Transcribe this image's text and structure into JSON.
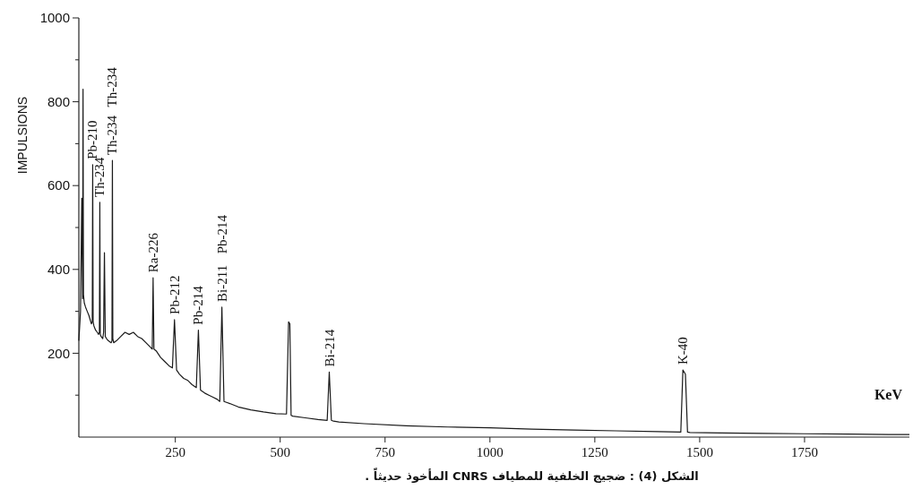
{
  "chart_data": {
    "type": "line",
    "xlabel": "KeV",
    "ylabel": "IMPULSIONS",
    "x": [
      20,
      24,
      27,
      29,
      30,
      31,
      33,
      36,
      40,
      44,
      47,
      50,
      52,
      53,
      54,
      56,
      60,
      64,
      67,
      69,
      70,
      71,
      73,
      77,
      79,
      81,
      83,
      86,
      90,
      97,
      99,
      100,
      101,
      103,
      110,
      120,
      130,
      140,
      150,
      160,
      170,
      180,
      190,
      195,
      197,
      199,
      205,
      215,
      225,
      235,
      243,
      248,
      253,
      260,
      270,
      280,
      290,
      300,
      305,
      310,
      320,
      330,
      340,
      350,
      356,
      361,
      366,
      380,
      400,
      430,
      460,
      490,
      515,
      520,
      523,
      526,
      530,
      560,
      590,
      612,
      617,
      622,
      627,
      640,
      700,
      800,
      900,
      1000,
      1100,
      1200,
      1300,
      1400,
      1455,
      1460,
      1466,
      1471,
      1477,
      1550,
      1650,
      1750,
      1850,
      1950,
      2000
    ],
    "series": [
      {
        "color": "#1a1a1a",
        "values": [
          230,
          300,
          570,
          330,
          830,
          340,
          320,
          310,
          300,
          290,
          280,
          270,
          275,
          650,
          275,
          265,
          255,
          250,
          245,
          250,
          560,
          245,
          240,
          235,
          250,
          440,
          240,
          235,
          230,
          225,
          230,
          660,
          235,
          225,
          230,
          240,
          250,
          245,
          250,
          240,
          235,
          225,
          215,
          210,
          380,
          210,
          205,
          190,
          180,
          170,
          165,
          280,
          160,
          150,
          140,
          135,
          125,
          118,
          255,
          112,
          105,
          100,
          95,
          90,
          85,
          310,
          85,
          80,
          72,
          65,
          60,
          56,
          55,
          275,
          270,
          52,
          50,
          46,
          42,
          40,
          155,
          40,
          38,
          36,
          32,
          27,
          24,
          22,
          19,
          17,
          15,
          13,
          12,
          160,
          150,
          12,
          11,
          10,
          9,
          8,
          7,
          6,
          6
        ]
      }
    ],
    "xlim": [
      20,
      2000
    ],
    "xticks": [
      250,
      500,
      750,
      1000,
      1250,
      1500,
      1750
    ],
    "ylim": [
      0,
      1000
    ],
    "yticks": [
      {
        "value": 100,
        "label": null
      },
      200,
      {
        "value": 300,
        "label": null
      },
      400,
      {
        "value": 500,
        "label": null
      },
      600,
      {
        "value": 700,
        "label": null
      },
      800,
      {
        "value": 900,
        "label": null
      },
      1000
    ],
    "grid": false,
    "annotations": [
      "الشكل (4) :  ضجيج الخلفية للمطياف CNRS  المأخوذ حديثاً .",
      {
        "text": "Pb-210",
        "x": 53,
        "y": 650
      },
      {
        "text": "Th-234",
        "x": 70,
        "y": 560
      },
      {
        "text": "Th-234",
        "x": 100,
        "y": 660
      },
      "Th-234",
      {
        "text": "Ra-226",
        "x": 197,
        "y": 380
      },
      {
        "text": "Pb-212",
        "x": 248,
        "y": 280
      },
      {
        "text": "Pb-214",
        "x": 305,
        "y": 255
      },
      {
        "text": "Bi-211",
        "x": 361,
        "y": 310
      },
      "Pb-214",
      {
        "text": "Bi-214",
        "x": 617,
        "y": 155
      },
      {
        "text": "K-40",
        "x": 1460,
        "y": 160
      }
    ]
  }
}
